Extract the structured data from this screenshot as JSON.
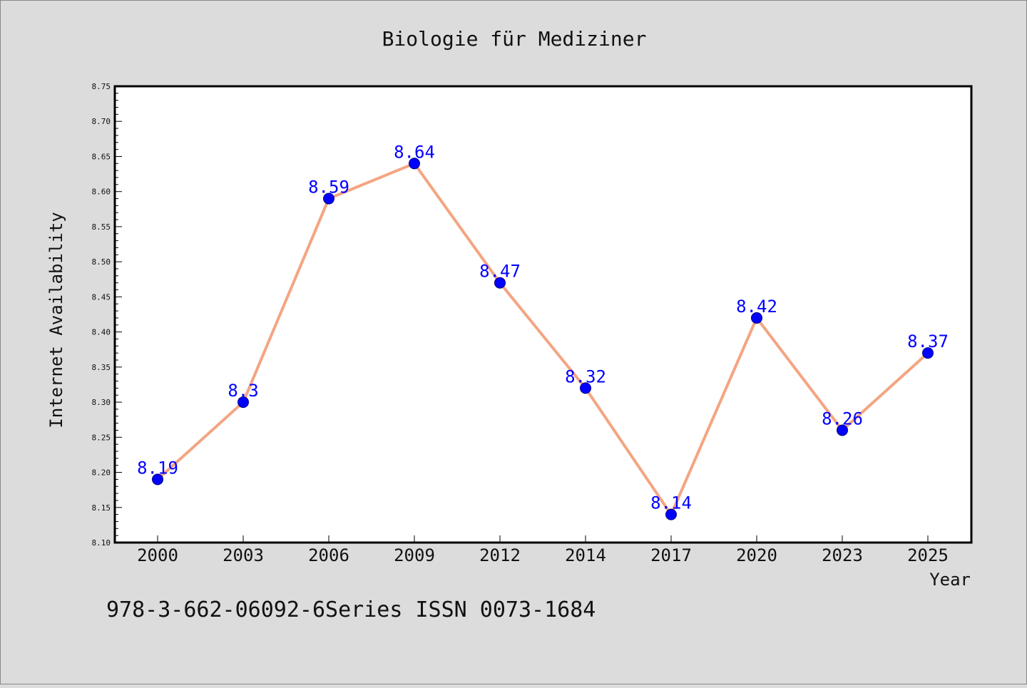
{
  "chart_data": {
    "type": "line",
    "title": "Biologie für Mediziner",
    "xlabel": "Year",
    "ylabel": "Internet Availability",
    "categories": [
      "2000",
      "2003",
      "2006",
      "2009",
      "2012",
      "2014",
      "2017",
      "2020",
      "2023",
      "2025"
    ],
    "series": [
      {
        "values": [
          8.19,
          8.3,
          8.59,
          8.64,
          8.47,
          8.32,
          8.14,
          8.42,
          8.26,
          8.37
        ]
      }
    ],
    "data_labels": [
      "8.19",
      "8.3",
      "8.59",
      "8.64",
      "8.47",
      "8.32",
      "8.14",
      "8.42",
      "8.26",
      "8.37"
    ],
    "ylim": [
      8.1,
      8.75
    ],
    "yticks": [
      "8.10",
      "8.15",
      "8.20",
      "8.25",
      "8.30",
      "8.35",
      "8.40",
      "8.45",
      "8.50",
      "8.55",
      "8.60",
      "8.65",
      "8.70",
      "8.75"
    ],
    "grid": false,
    "legend": "none",
    "footer_text": "978-3-662-06092-6Series ISSN 0073-1684",
    "colors": {
      "background": "#dcdcdc",
      "plot_background": "#ffffff",
      "line": "#f4a582",
      "marker": "#0000ff",
      "data_label": "#0000ff",
      "text": "#111111"
    }
  }
}
